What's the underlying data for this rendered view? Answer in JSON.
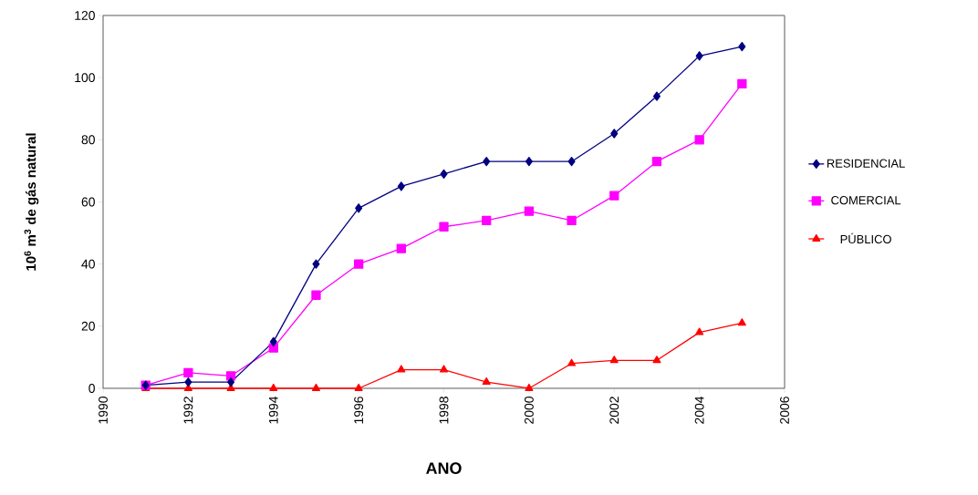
{
  "chart_data": {
    "type": "line",
    "xlabel": "ANO",
    "ylabel": "10$^{6}$ m$^{3}$ de gás natural",
    "x": [
      1991,
      1992,
      1993,
      1994,
      1995,
      1996,
      1997,
      1998,
      1999,
      2000,
      2001,
      2002,
      2003,
      2004,
      2005
    ],
    "series": [
      {
        "name": "RESIDENCIAL",
        "color": "#000080",
        "marker": "diamond",
        "values": [
          1,
          2,
          2,
          15,
          40,
          58,
          65,
          69,
          73,
          73,
          73,
          82,
          94,
          107,
          110
        ]
      },
      {
        "name": "COMERCIAL",
        "color": "#ff00ff",
        "marker": "square",
        "values": [
          1,
          5,
          4,
          13,
          30,
          40,
          45,
          52,
          54,
          57,
          54,
          62,
          73,
          80,
          98
        ]
      },
      {
        "name": "PÚBLICO",
        "color": "#ff0000",
        "marker": "triangle",
        "values": [
          0,
          0,
          0,
          0,
          0,
          0,
          6,
          6,
          2,
          0,
          8,
          9,
          9,
          18,
          21
        ]
      }
    ],
    "xlim": [
      1990,
      2006
    ],
    "xticks": [
      1990,
      1992,
      1994,
      1996,
      1998,
      2000,
      2002,
      2004,
      2006
    ],
    "ylim": [
      0,
      120
    ],
    "yticks": [
      0,
      20,
      40,
      60,
      80,
      100,
      120
    ],
    "grid": false,
    "legend": "right",
    "line_style": "solid"
  }
}
